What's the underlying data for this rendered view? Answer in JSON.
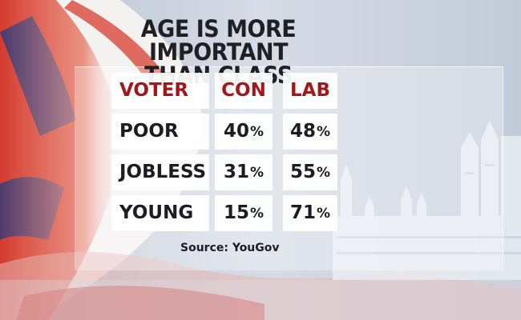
{
  "title_line1": "AGE IS MORE IMPORTANT",
  "title_line2": "THAN CLASS",
  "source": "Source: YouGov",
  "colors": {
    "header": "#a3161a",
    "text": "#1c1c22",
    "cell_bg": "#ffffff"
  },
  "chart_data": {
    "type": "table",
    "columns": [
      "VOTER",
      "CON",
      "LAB"
    ],
    "rows": [
      {
        "voter": "POOR",
        "con": 40,
        "lab": 48
      },
      {
        "voter": "JOBLESS",
        "con": 31,
        "lab": 55
      },
      {
        "voter": "YOUNG",
        "con": 15,
        "lab": 71
      }
    ],
    "unit": "%"
  }
}
